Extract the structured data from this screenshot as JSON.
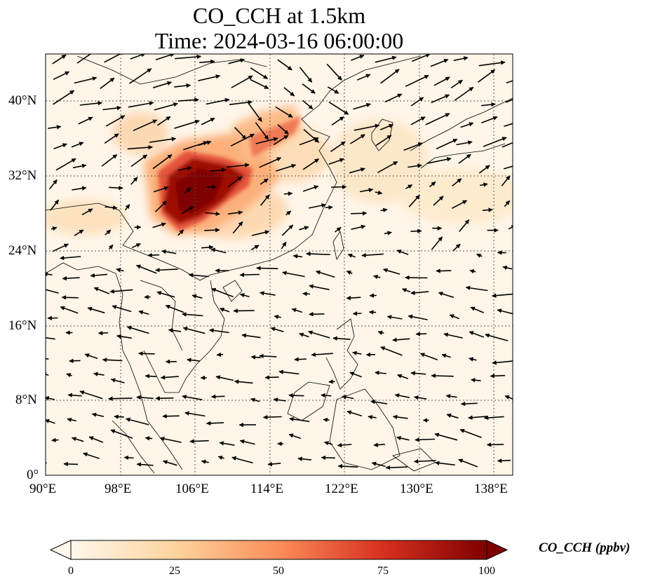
{
  "title": {
    "line1": "CO_CCH at 1.5km",
    "line2": "Time: 2024-03-16 06:00:00"
  },
  "map": {
    "variable": "CO_CCH",
    "level": "1.5km",
    "lon_range": [
      90,
      140
    ],
    "lat_range": [
      0,
      45
    ],
    "x_ticks": [
      "90°E",
      "98°E",
      "106°E",
      "114°E",
      "122°E",
      "130°E",
      "138°E"
    ],
    "y_ticks": [
      "0°",
      "8°N",
      "16°N",
      "24°N",
      "32°N",
      "40°N"
    ],
    "gridlines": true,
    "overlays": [
      "coastlines",
      "country-borders",
      "wind-vectors"
    ],
    "plume_region": "Sichuan Basin / central China, max > 100 ppbv"
  },
  "colorbar": {
    "label": "CO_CCH (ppbv)",
    "ticks": [
      "0",
      "25",
      "50",
      "75",
      "100"
    ],
    "min": 0,
    "max": 100,
    "colormap": "OrRd",
    "extend": "both",
    "colors": [
      "#fff7ec",
      "#fdd49e",
      "#fc8d59",
      "#d7301f",
      "#7f0000"
    ]
  }
}
